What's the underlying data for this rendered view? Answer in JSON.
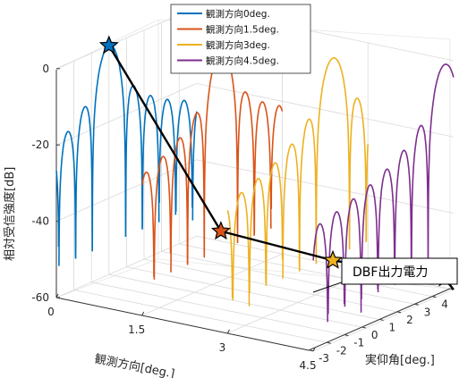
{
  "chart_data": {
    "type": "line",
    "view": "3d",
    "xlabel": "観測方向[deg.]",
    "ylabel": "実仰角[deg.]",
    "zlabel": "相対受信強度[dB]",
    "x_ticks": [
      "0",
      "1.5",
      "3",
      "4.5"
    ],
    "y_ticks": [
      "-3",
      "-2",
      "-1",
      "0",
      "1",
      "2",
      "3",
      "4",
      "5"
    ],
    "z_ticks": [
      "0",
      "-20",
      "-40",
      "-60"
    ],
    "xlim": [
      0,
      4.5
    ],
    "ylim": [
      -3,
      5
    ],
    "zlim": [
      -60,
      0
    ],
    "legend": {
      "placement": "top-center",
      "entries": [
        "観測方向0deg.",
        "観測方向1.5deg.",
        "観測方向3deg.",
        "観測方向4.5deg."
      ]
    },
    "series": [
      {
        "name": "観測方向0deg.",
        "color": "#0072bd",
        "observation_deg": 0,
        "peak_elevation_deg": 0,
        "peak_db": 0
      },
      {
        "name": "観測方向1.5deg.",
        "color": "#d95319",
        "observation_deg": 1.5,
        "peak_elevation_deg": 1.5,
        "peak_db": -47
      },
      {
        "name": "観測方向3deg.",
        "color": "#edb120",
        "observation_deg": 3,
        "peak_elevation_deg": 3,
        "peak_db": -53
      },
      {
        "name": "観測方向4.5deg.",
        "color": "#7e2f8e",
        "observation_deg": 4.5,
        "peak_elevation_deg": 4.5,
        "peak_db": -56
      }
    ],
    "dbf_power": {
      "label": "DBF出力電力",
      "color": "#000000",
      "observation_deg": [
        0,
        1.5,
        3,
        4.5
      ],
      "values_db": [
        0,
        -47,
        -53,
        -56
      ]
    }
  }
}
